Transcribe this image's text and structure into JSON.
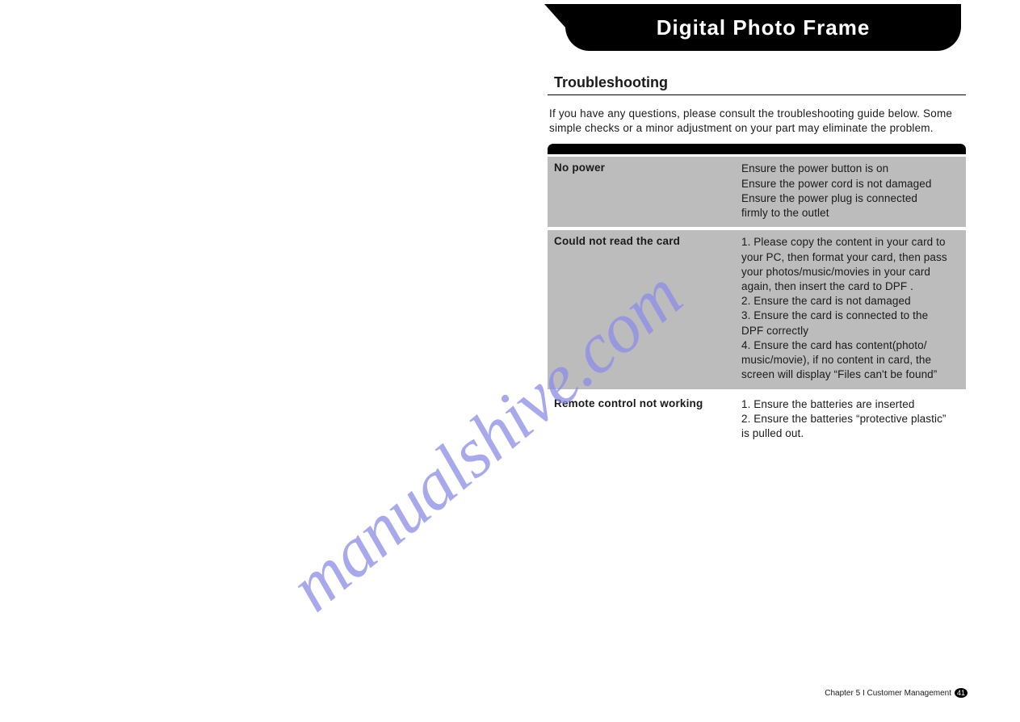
{
  "header": {
    "title": "Digital Photo Frame",
    "background_color": "#000000",
    "text_color": "#ffffff"
  },
  "section": {
    "title": "Troubleshooting",
    "intro": "If you have any questions, please consult the troubleshooting guide below. Some simple checks or a minor adjustment on your part may eliminate the problem."
  },
  "table": {
    "shaded_color": "#bcbcbc",
    "rows": [
      {
        "problem": "No power",
        "shaded": true,
        "solutions": [
          "Ensure the power button is on",
          "Ensure the power cord is not damaged",
          "Ensure the power plug is connected",
          "firmly to the outlet"
        ]
      },
      {
        "problem": "Could not read the card",
        "shaded": true,
        "solutions": [
          "1.  Please copy the content in your card to",
          "your PC, then format your card, then pass",
          "your photos/music/movies in your card",
          "again, then insert the card to DPF .",
          "2.  Ensure the card is not damaged",
          "3.  Ensure the card is connected to the",
          "DPF correctly",
          "4.  Ensure the card has content(photo/",
          " music/movie), if no content in card, the",
          " screen will display “Files can't be found”"
        ]
      },
      {
        "problem": "Remote control not working",
        "shaded": false,
        "solutions": [
          "1.  Ensure the batteries are inserted",
          "2.  Ensure the batteries “protective plastic”",
          "     is pulled out."
        ]
      }
    ]
  },
  "watermark": {
    "text": "manualshive.com",
    "color": "#8b8de8"
  },
  "footer": {
    "chapter": "Chapter 5 I Customer Management",
    "page_number": "41"
  }
}
